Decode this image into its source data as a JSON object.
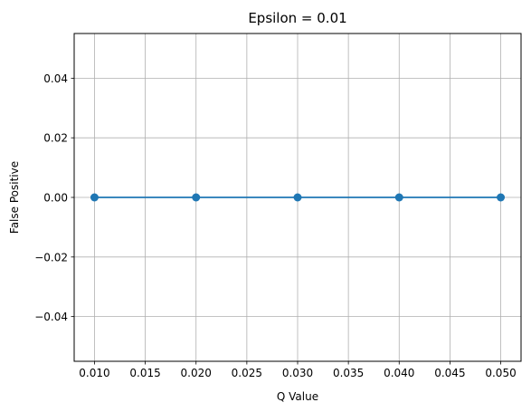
{
  "chart_data": {
    "type": "line",
    "title": "Epsilon = 0.01",
    "xlabel": "Q Value",
    "ylabel": "False Positive",
    "xlim": [
      0.008,
      0.052
    ],
    "ylim": [
      -0.055,
      0.055
    ],
    "x_ticks": [
      0.01,
      0.015,
      0.02,
      0.025,
      0.03,
      0.035,
      0.04,
      0.045,
      0.05
    ],
    "x_tick_labels": [
      "0.010",
      "0.015",
      "0.020",
      "0.025",
      "0.030",
      "0.035",
      "0.040",
      "0.045",
      "0.050"
    ],
    "y_ticks": [
      -0.04,
      -0.02,
      0.0,
      0.02,
      0.04
    ],
    "y_tick_labels": [
      "−0.04",
      "−0.02",
      "0.00",
      "0.02",
      "0.04"
    ],
    "grid": true,
    "legend": "none",
    "series": [
      {
        "color": "#1f77b4",
        "marker": "circle",
        "x": [
          0.01,
          0.02,
          0.03,
          0.04,
          0.05
        ],
        "y": [
          0.0,
          0.0,
          0.0,
          0.0,
          0.0
        ]
      }
    ]
  }
}
